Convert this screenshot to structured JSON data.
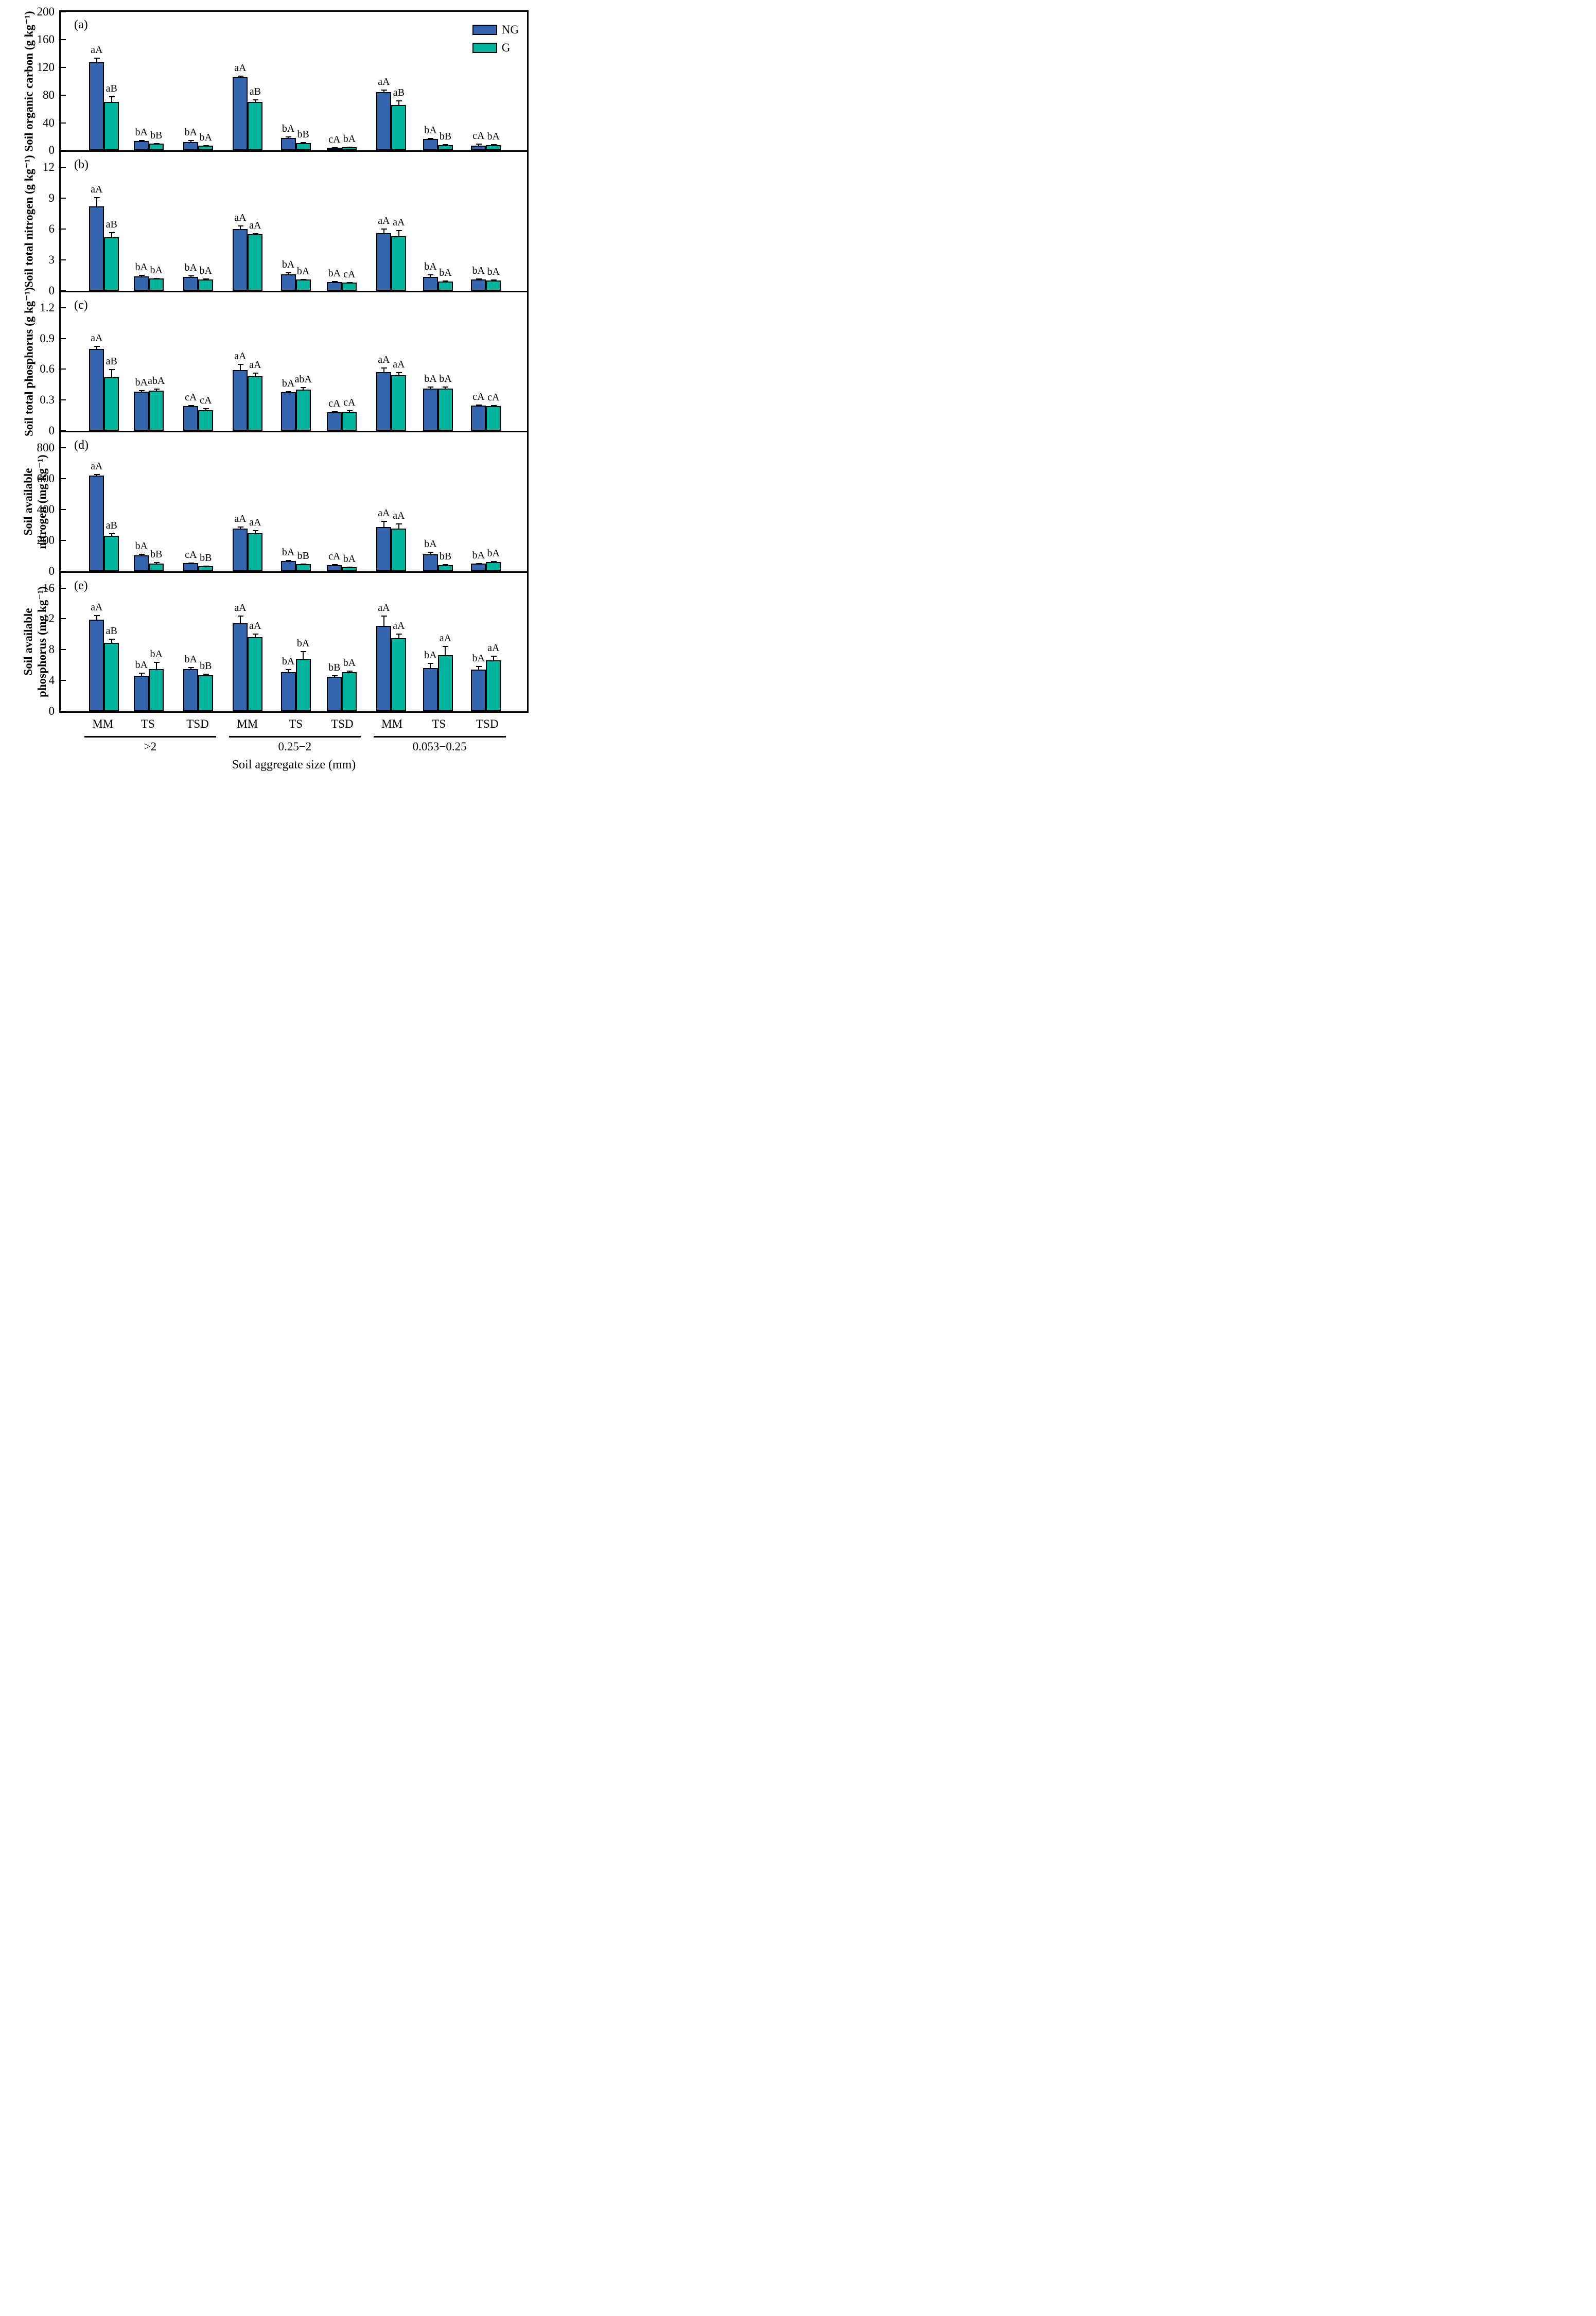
{
  "figure": {
    "xlabel": "Soil aggregate size (mm)",
    "legend": [
      {
        "label": "NG",
        "color": "#3766B0"
      },
      {
        "label": "G",
        "color": "#00B5A0"
      }
    ],
    "treatment_labels": [
      "MM",
      "TS",
      "TSD"
    ],
    "group_labels": [
      ">2",
      "0.25−2",
      "0.053−0.25"
    ]
  },
  "chart_data": [
    {
      "type": "bar",
      "panel": "(a)",
      "ylabel": "Soil organic carbon (g kg⁻¹)",
      "ylabel_lines": [
        "Soil organic carbon (g kg⁻¹)"
      ],
      "ylim": [
        0,
        200
      ],
      "yticks": [
        0,
        40,
        80,
        120,
        160,
        200
      ],
      "categories": [
        "MM",
        "TS",
        "TSD",
        "MM",
        "TS",
        "TSD",
        "MM",
        "TS",
        "TSD"
      ],
      "legend_position": "top-right",
      "grid": false,
      "series": [
        {
          "name": "NG",
          "color": "#3766B0",
          "values": [
            127,
            14,
            12,
            106,
            18,
            4,
            84,
            17,
            7
          ],
          "errors": [
            7,
            1,
            3,
            2,
            2,
            1,
            4,
            1,
            3
          ],
          "sig_labels": [
            "aA",
            "bA",
            "bA",
            "aA",
            "bA",
            "cA",
            "aA",
            "bA",
            "cA"
          ]
        },
        {
          "name": "G",
          "color": "#00B5A0",
          "values": [
            70,
            10,
            7,
            70,
            11,
            5,
            66,
            8,
            8
          ],
          "errors": [
            8,
            1,
            1,
            4,
            1,
            0.5,
            6,
            1,
            1
          ],
          "sig_labels": [
            "aB",
            "bB",
            "bA",
            "aB",
            "bB",
            "bA",
            "aB",
            "bB",
            "bA"
          ]
        }
      ]
    },
    {
      "type": "bar",
      "panel": "(b)",
      "ylabel": "Soil total nitrogen (g kg⁻¹)",
      "ylabel_lines": [
        "Soil total nitrogen (g kg⁻¹)"
      ],
      "ylim": [
        0,
        13.5
      ],
      "yticks": [
        0,
        3,
        6,
        9,
        12
      ],
      "categories": [
        "MM",
        "TS",
        "TSD",
        "MM",
        "TS",
        "TSD",
        "MM",
        "TS",
        "TSD"
      ],
      "grid": false,
      "series": [
        {
          "name": "NG",
          "color": "#3766B0",
          "values": [
            8.2,
            1.4,
            1.35,
            6.0,
            1.6,
            0.85,
            5.6,
            1.35,
            1.1
          ],
          "errors": [
            0.9,
            0.15,
            0.15,
            0.35,
            0.2,
            0.1,
            0.45,
            0.25,
            0.1
          ],
          "sig_labels": [
            "aA",
            "bA",
            "bA",
            "aA",
            "bA",
            "bA",
            "aA",
            "bA",
            "bA"
          ]
        },
        {
          "name": "G",
          "color": "#00B5A0",
          "values": [
            5.2,
            1.2,
            1.1,
            5.5,
            1.1,
            0.8,
            5.3,
            0.9,
            1.0
          ],
          "errors": [
            0.5,
            0.05,
            0.1,
            0.1,
            0.05,
            0.05,
            0.6,
            0.1,
            0.1
          ],
          "sig_labels": [
            "aB",
            "bA",
            "bA",
            "aA",
            "bA",
            "cA",
            "aA",
            "bA",
            "bA"
          ]
        }
      ]
    },
    {
      "type": "bar",
      "panel": "(c)",
      "ylabel": "Soil total phosphorus (g kg⁻¹)",
      "ylabel_lines": [
        "Soil total phosphorus (g kg⁻¹)"
      ],
      "ylim": [
        0,
        1.35
      ],
      "yticks": [
        0,
        0.3,
        0.6,
        0.9,
        1.2
      ],
      "categories": [
        "MM",
        "TS",
        "TSD",
        "MM",
        "TS",
        "TSD",
        "MM",
        "TS",
        "TSD"
      ],
      "grid": false,
      "series": [
        {
          "name": "NG",
          "color": "#3766B0",
          "values": [
            0.8,
            0.38,
            0.24,
            0.59,
            0.375,
            0.18,
            0.57,
            0.41,
            0.245
          ],
          "errors": [
            0.03,
            0.015,
            0.01,
            0.065,
            0.01,
            0.01,
            0.05,
            0.02,
            0.01
          ],
          "sig_labels": [
            "aA",
            "bA",
            "cA",
            "aA",
            "bA",
            "cA",
            "aA",
            "bA",
            "cA"
          ]
        },
        {
          "name": "G",
          "color": "#00B5A0",
          "values": [
            0.52,
            0.39,
            0.2,
            0.53,
            0.4,
            0.185,
            0.54,
            0.41,
            0.24
          ],
          "errors": [
            0.08,
            0.02,
            0.02,
            0.035,
            0.025,
            0.015,
            0.03,
            0.02,
            0.01
          ],
          "sig_labels": [
            "aB",
            "abA",
            "cA",
            "aA",
            "abA",
            "cA",
            "aA",
            "bA",
            "cA"
          ]
        }
      ]
    },
    {
      "type": "bar",
      "panel": "(d)",
      "ylabel": "Soil available nitrogen (mg kg⁻¹)",
      "ylabel_lines": [
        "Soil available",
        "nitrogen (mg kg⁻¹)"
      ],
      "ylim": [
        0,
        900
      ],
      "yticks": [
        0,
        200,
        400,
        600,
        800
      ],
      "categories": [
        "MM",
        "TS",
        "TSD",
        "MM",
        "TS",
        "TSD",
        "MM",
        "TS",
        "TSD"
      ],
      "grid": false,
      "series": [
        {
          "name": "NG",
          "color": "#3766B0",
          "values": [
            620,
            103,
            51,
            275,
            65,
            40,
            285,
            110,
            48
          ],
          "errors": [
            10,
            8,
            5,
            15,
            8,
            5,
            40,
            15,
            5
          ],
          "sig_labels": [
            "aA",
            "bA",
            "cA",
            "aA",
            "bA",
            "cA",
            "aA",
            "bA",
            "bA"
          ]
        },
        {
          "name": "G",
          "color": "#00B5A0",
          "values": [
            230,
            48,
            32,
            245,
            45,
            25,
            275,
            40,
            58
          ],
          "errors": [
            15,
            10,
            4,
            20,
            4,
            3,
            35,
            5,
            6
          ],
          "sig_labels": [
            "aB",
            "bB",
            "bB",
            "aA",
            "bB",
            "bA",
            "aA",
            "bB",
            "bA"
          ]
        }
      ]
    },
    {
      "type": "bar",
      "panel": "(e)",
      "ylabel": "Soil available phosphorus (mg kg⁻¹)",
      "ylabel_lines": [
        "Soil available",
        "phosphorus (mg kg⁻¹)"
      ],
      "ylim": [
        0,
        18
      ],
      "yticks": [
        0,
        4,
        8,
        12,
        16
      ],
      "categories": [
        "MM",
        "TS",
        "TSD",
        "MM",
        "TS",
        "TSD",
        "MM",
        "TS",
        "TSD"
      ],
      "grid": false,
      "series": [
        {
          "name": "NG",
          "color": "#3766B0",
          "values": [
            11.9,
            4.6,
            5.5,
            11.4,
            5.1,
            4.5,
            11.1,
            5.6,
            5.4
          ],
          "errors": [
            0.6,
            0.4,
            0.25,
            1.0,
            0.35,
            0.2,
            1.3,
            0.7,
            0.5
          ],
          "sig_labels": [
            "aA",
            "bA",
            "bA",
            "aA",
            "bA",
            "bB",
            "aA",
            "bA",
            "bA"
          ]
        },
        {
          "name": "G",
          "color": "#00B5A0",
          "values": [
            8.9,
            5.5,
            4.7,
            9.6,
            6.8,
            5.1,
            9.5,
            7.3,
            6.6
          ],
          "errors": [
            0.5,
            0.9,
            0.2,
            0.5,
            1.0,
            0.2,
            0.6,
            1.2,
            0.6
          ],
          "sig_labels": [
            "aB",
            "bA",
            "bB",
            "aA",
            "bA",
            "bA",
            "aA",
            "aA",
            "aA"
          ]
        }
      ]
    }
  ]
}
